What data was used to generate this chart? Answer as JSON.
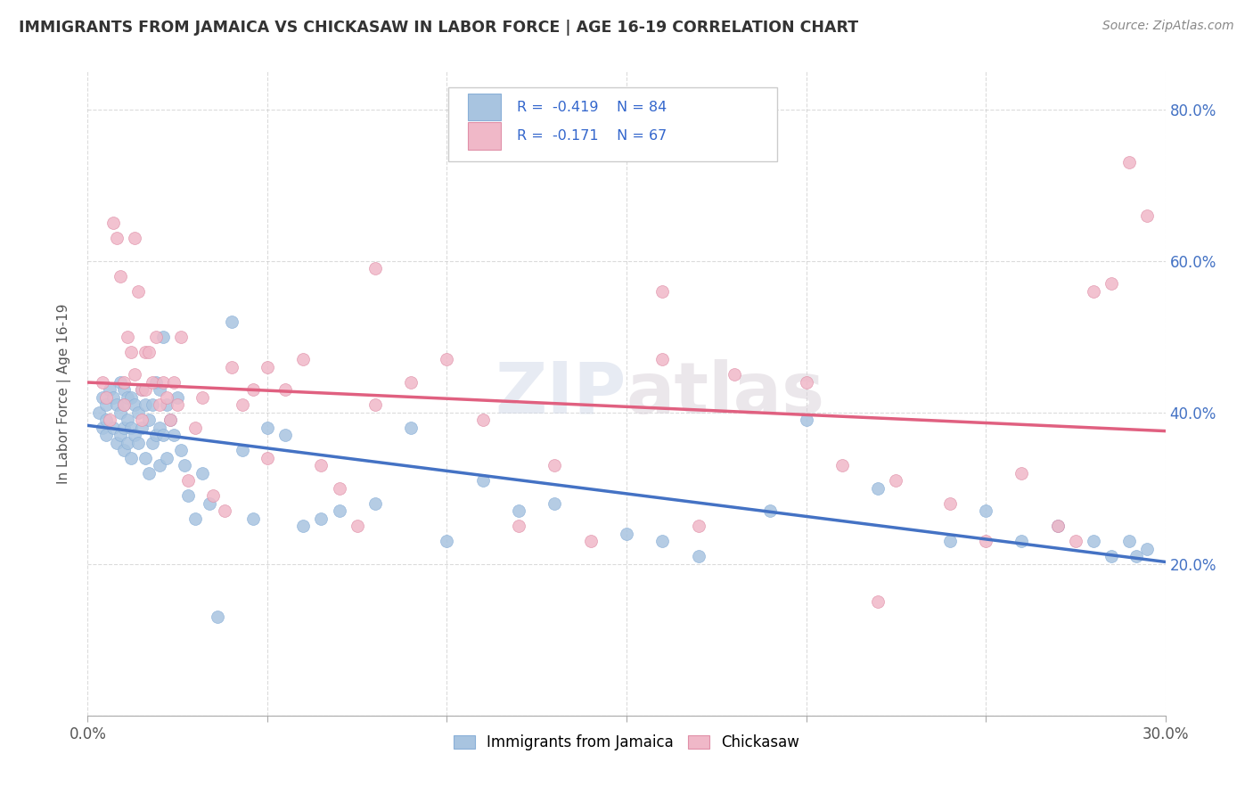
{
  "title": "IMMIGRANTS FROM JAMAICA VS CHICKASAW IN LABOR FORCE | AGE 16-19 CORRELATION CHART",
  "source": "Source: ZipAtlas.com",
  "ylabel": "In Labor Force | Age 16-19",
  "xlim": [
    0.0,
    0.3
  ],
  "ylim": [
    0.0,
    0.85
  ],
  "x_ticks": [
    0.0,
    0.05,
    0.1,
    0.15,
    0.2,
    0.25,
    0.3
  ],
  "y_ticks": [
    0.0,
    0.2,
    0.4,
    0.6,
    0.8
  ],
  "jamaica_color": "#a8c4e0",
  "chickasaw_color": "#f0b8c8",
  "jamaica_line_color": "#4472c4",
  "chickasaw_line_color": "#e06080",
  "jamaica_R": -0.419,
  "jamaica_N": 84,
  "chickasaw_R": -0.171,
  "chickasaw_N": 67,
  "jamaica_scatter_x": [
    0.003,
    0.004,
    0.004,
    0.005,
    0.005,
    0.005,
    0.006,
    0.007,
    0.007,
    0.008,
    0.008,
    0.009,
    0.009,
    0.009,
    0.01,
    0.01,
    0.01,
    0.01,
    0.011,
    0.011,
    0.011,
    0.012,
    0.012,
    0.012,
    0.013,
    0.013,
    0.014,
    0.014,
    0.015,
    0.015,
    0.016,
    0.016,
    0.017,
    0.017,
    0.018,
    0.018,
    0.019,
    0.019,
    0.02,
    0.02,
    0.02,
    0.021,
    0.021,
    0.022,
    0.022,
    0.023,
    0.024,
    0.025,
    0.026,
    0.027,
    0.028,
    0.03,
    0.032,
    0.034,
    0.036,
    0.04,
    0.043,
    0.046,
    0.05,
    0.055,
    0.06,
    0.065,
    0.07,
    0.08,
    0.09,
    0.1,
    0.11,
    0.12,
    0.13,
    0.15,
    0.16,
    0.17,
    0.19,
    0.2,
    0.22,
    0.24,
    0.25,
    0.26,
    0.27,
    0.28,
    0.285,
    0.29,
    0.292,
    0.295
  ],
  "jamaica_scatter_y": [
    0.4,
    0.42,
    0.38,
    0.41,
    0.39,
    0.37,
    0.43,
    0.42,
    0.38,
    0.41,
    0.36,
    0.44,
    0.4,
    0.37,
    0.43,
    0.41,
    0.38,
    0.35,
    0.42,
    0.39,
    0.36,
    0.42,
    0.38,
    0.34,
    0.41,
    0.37,
    0.4,
    0.36,
    0.43,
    0.38,
    0.41,
    0.34,
    0.39,
    0.32,
    0.41,
    0.36,
    0.44,
    0.37,
    0.43,
    0.38,
    0.33,
    0.5,
    0.37,
    0.41,
    0.34,
    0.39,
    0.37,
    0.42,
    0.35,
    0.33,
    0.29,
    0.26,
    0.32,
    0.28,
    0.13,
    0.52,
    0.35,
    0.26,
    0.38,
    0.37,
    0.25,
    0.26,
    0.27,
    0.28,
    0.38,
    0.23,
    0.31,
    0.27,
    0.28,
    0.24,
    0.23,
    0.21,
    0.27,
    0.39,
    0.3,
    0.23,
    0.27,
    0.23,
    0.25,
    0.23,
    0.21,
    0.23,
    0.21,
    0.22
  ],
  "chickasaw_scatter_x": [
    0.004,
    0.005,
    0.006,
    0.007,
    0.008,
    0.009,
    0.01,
    0.01,
    0.011,
    0.012,
    0.013,
    0.013,
    0.014,
    0.015,
    0.015,
    0.016,
    0.016,
    0.017,
    0.018,
    0.019,
    0.02,
    0.021,
    0.022,
    0.023,
    0.024,
    0.025,
    0.026,
    0.028,
    0.03,
    0.032,
    0.035,
    0.038,
    0.04,
    0.043,
    0.046,
    0.05,
    0.055,
    0.06,
    0.065,
    0.07,
    0.075,
    0.08,
    0.09,
    0.1,
    0.11,
    0.12,
    0.13,
    0.14,
    0.16,
    0.17,
    0.18,
    0.2,
    0.21,
    0.22,
    0.225,
    0.24,
    0.25,
    0.26,
    0.27,
    0.275,
    0.28,
    0.285,
    0.29,
    0.295,
    0.05,
    0.08,
    0.16
  ],
  "chickasaw_scatter_y": [
    0.44,
    0.42,
    0.39,
    0.65,
    0.63,
    0.58,
    0.44,
    0.41,
    0.5,
    0.48,
    0.63,
    0.45,
    0.56,
    0.43,
    0.39,
    0.48,
    0.43,
    0.48,
    0.44,
    0.5,
    0.41,
    0.44,
    0.42,
    0.39,
    0.44,
    0.41,
    0.5,
    0.31,
    0.38,
    0.42,
    0.29,
    0.27,
    0.46,
    0.41,
    0.43,
    0.34,
    0.43,
    0.47,
    0.33,
    0.3,
    0.25,
    0.41,
    0.44,
    0.47,
    0.39,
    0.25,
    0.33,
    0.23,
    0.47,
    0.25,
    0.45,
    0.44,
    0.33,
    0.15,
    0.31,
    0.28,
    0.23,
    0.32,
    0.25,
    0.23,
    0.56,
    0.57,
    0.73,
    0.66,
    0.46,
    0.59,
    0.56
  ],
  "legend_jamaica_label": "Immigrants from Jamaica",
  "legend_chickasaw_label": "Chickasaw"
}
